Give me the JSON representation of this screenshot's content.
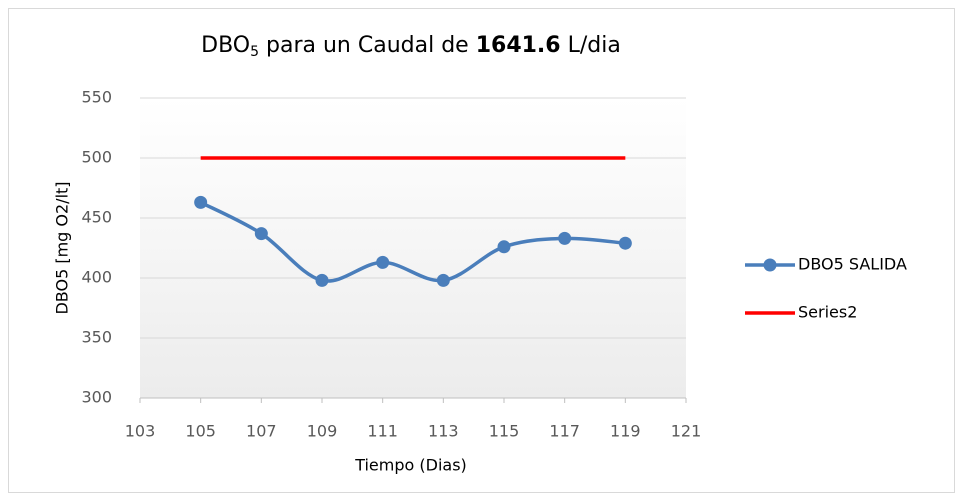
{
  "chart_data": {
    "type": "line",
    "title": [
      "DBO",
      "5",
      " para un Caudal de ",
      "1641.6",
      " L/dia"
    ],
    "xlabel": "Tiempo (Dias)",
    "ylabel": "DBO5 [mg O2/lt]",
    "x": [
      105,
      107,
      109,
      111,
      113,
      115,
      117,
      119
    ],
    "series": [
      {
        "name": "DBO5 SALIDA",
        "color": "#4a7ebb",
        "values": [
          463,
          437,
          398,
          413,
          398,
          426,
          433,
          429
        ],
        "markers": true
      },
      {
        "name": "Series2",
        "color": "#ff0000",
        "values": [
          500,
          500,
          500,
          500,
          500,
          500,
          500,
          500
        ],
        "markers": false
      }
    ],
    "xlim": [
      103,
      121
    ],
    "xticks": [
      103,
      105,
      107,
      109,
      111,
      113,
      115,
      117,
      119,
      121
    ],
    "ylim": [
      300,
      550
    ],
    "yticks": [
      300,
      350,
      400,
      450,
      500,
      550
    ],
    "grid": true,
    "legend": "right"
  }
}
